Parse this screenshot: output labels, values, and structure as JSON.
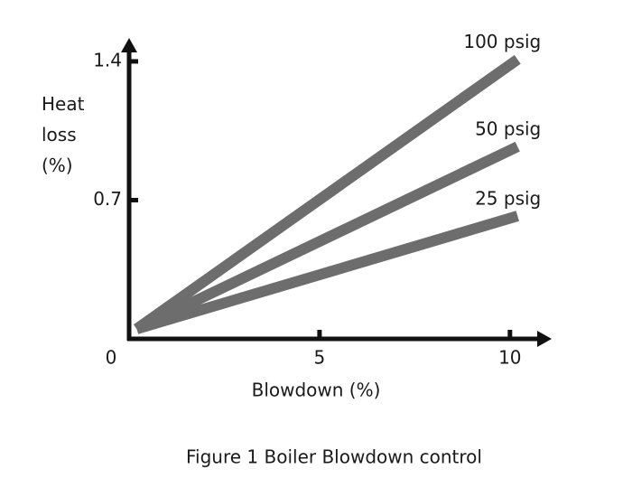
{
  "chart_data": {
    "type": "line",
    "title": "Figure 1 Boiler Blowdown control",
    "x_label": "Blowdown (%)",
    "y_label": "Heat loss (%)",
    "x": [
      0.2,
      10.2
    ],
    "series": [
      {
        "name": "100 psig",
        "color": "#6d6d6d",
        "values": [
          0.05,
          1.41
        ]
      },
      {
        "name": "50 psig",
        "color": "#6d6d6d",
        "values": [
          0.05,
          0.97
        ]
      },
      {
        "name": "25 psig",
        "color": "#6d6d6d",
        "values": [
          0.05,
          0.62
        ]
      }
    ],
    "xlim": [
      0,
      11
    ],
    "xticks": [
      0,
      5,
      10
    ],
    "ylim": [
      0,
      1.5
    ],
    "yticks": [
      0.7,
      1.4
    ],
    "grid": false
  }
}
